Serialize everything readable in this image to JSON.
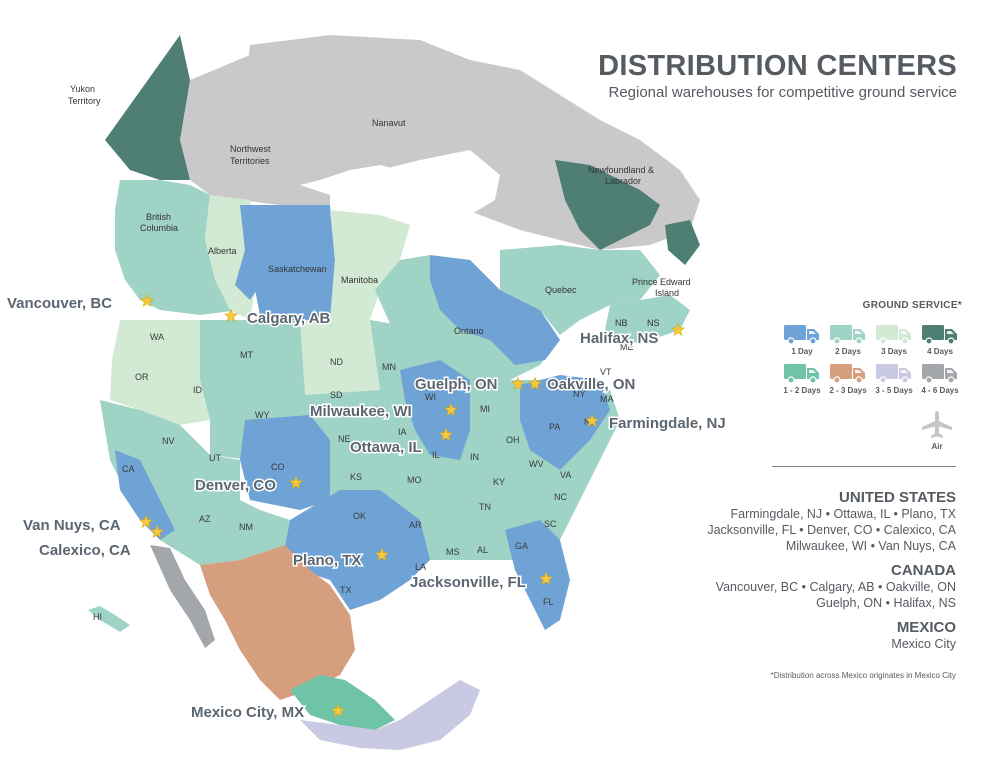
{
  "header": {
    "title": "DISTRIBUTION CENTERS",
    "subtitle": "Regional warehouses for competitive ground service"
  },
  "colors": {
    "one_day": "#6fa3d6",
    "two_days": "#9fd3c5",
    "three_days": "#d2e9d3",
    "four_days": "#4f7f74",
    "one_two_days": "#6fc4a8",
    "two_three_days": "#d59f7f",
    "three_five_days": "#c9c9e4",
    "four_six_days": "#a3a7ab",
    "unserved": "#c9c9c9",
    "water": "#ffffff",
    "star": "#f5c842"
  },
  "legend": {
    "title": "GROUND SERVICE*",
    "items": [
      {
        "label": "1 Day",
        "color": "#6fa3d6"
      },
      {
        "label": "2 Days",
        "color": "#9fd3c5"
      },
      {
        "label": "3 Days",
        "color": "#d2e9d3"
      },
      {
        "label": "4 Days",
        "color": "#4f7f74"
      },
      {
        "label": "1 - 2 Days",
        "color": "#6fc4a8"
      },
      {
        "label": "2 - 3 Days",
        "color": "#d59f7f"
      },
      {
        "label": "3 - 5 Days",
        "color": "#c9c9e4"
      },
      {
        "label": "4 - 6 Days",
        "color": "#a3a7ab"
      }
    ],
    "air_label": "Air",
    "truck_icon": "truck-icon",
    "air_icon": "airplane-icon"
  },
  "countries": {
    "us": {
      "heading": "UNITED STATES",
      "lines": [
        "Farmingdale, NJ • Ottawa, IL • Plano, TX",
        "Jacksonville, FL • Denver, CO •  Calexico, CA",
        "Milwaukee, WI  •  Van Nuys, CA"
      ]
    },
    "canada": {
      "heading": "CANADA",
      "lines": [
        "Vancouver, BC • Calgary, AB • Oakville, ON",
        "Guelph, ON • Halifax, NS"
      ]
    },
    "mexico": {
      "heading": "MEXICO",
      "lines": [
        "Mexico City"
      ]
    }
  },
  "footnote": "*Distribution across Mexico originates in Mexico City",
  "map": {
    "regions": [
      {
        "name": "Yukon",
        "label": "Yukon"
      },
      {
        "name": "Yukon2",
        "label": "Territory"
      },
      {
        "name": "NWT",
        "label": "Northwest"
      },
      {
        "name": "NWT2",
        "label": "Territories"
      },
      {
        "name": "Nunavut",
        "label": "Nanavut"
      },
      {
        "name": "NL",
        "label": "Newfoundland &"
      },
      {
        "name": "NL2",
        "label": "Labrador"
      },
      {
        "name": "BC",
        "label": "British"
      },
      {
        "name": "BC2",
        "label": "Columbia"
      },
      {
        "name": "AB",
        "label": "Alberta"
      },
      {
        "name": "SK",
        "label": "Saskatchewan"
      },
      {
        "name": "MB",
        "label": "Manitoba"
      },
      {
        "name": "ON",
        "label": "Ontario"
      },
      {
        "name": "QC",
        "label": "Quebec"
      },
      {
        "name": "PEI",
        "label": "Prince Edward"
      },
      {
        "name": "PEI2",
        "label": "Island"
      },
      {
        "name": "NB",
        "label": "NB"
      },
      {
        "name": "NS",
        "label": "NS"
      }
    ],
    "states": [
      "WA",
      "OR",
      "ID",
      "MT",
      "WY",
      "ND",
      "SD",
      "NE",
      "MN",
      "IA",
      "WI",
      "MI",
      "IL",
      "IN",
      "OH",
      "PA",
      "NY",
      "ME",
      "VT",
      "CA",
      "NV",
      "UT",
      "CO",
      "AZ",
      "NM",
      "KS",
      "OK",
      "TX",
      "MO",
      "AR",
      "LA",
      "MS",
      "AL",
      "GA",
      "FL",
      "TN",
      "KY",
      "WV",
      "VA",
      "NC",
      "SC",
      "NJ",
      "MA",
      "HI"
    ],
    "cities": [
      {
        "label": "Vancouver, BC"
      },
      {
        "label": "Calgary, AB"
      },
      {
        "label": "Halifax, NS"
      },
      {
        "label": "Guelph, ON"
      },
      {
        "label": "Oakville, ON"
      },
      {
        "label": "Milwaukee, WI"
      },
      {
        "label": "Farmingdale, NJ"
      },
      {
        "label": "Ottawa, IL"
      },
      {
        "label": "Denver, CO"
      },
      {
        "label": "Van Nuys, CA"
      },
      {
        "label": "Calexico, CA"
      },
      {
        "label": "Plano, TX"
      },
      {
        "label": "Jacksonville, FL"
      },
      {
        "label": "Mexico City, MX"
      }
    ]
  }
}
